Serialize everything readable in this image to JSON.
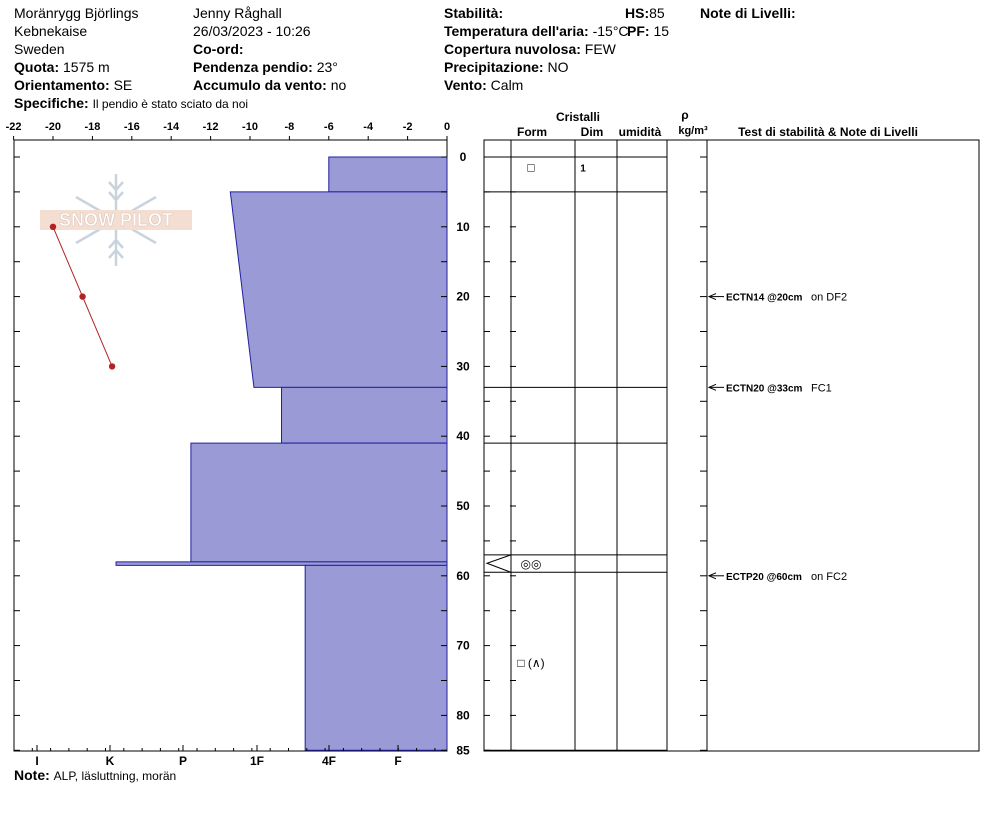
{
  "header": {
    "location": "Moränrygg Björlings",
    "region": "Kebnekaise",
    "country": "Sweden",
    "quota_label": "Quota:",
    "quota_value": "1575 m",
    "orient_label": "Orientamento:",
    "orient_value": "SE",
    "specifiche_label": "Specifiche:",
    "specifiche_value": "Il pendio è stato sciato da noi",
    "observer": "Jenny Råghall",
    "datetime": "26/03/2023 - 10:26",
    "coord_label": "Co-ord:",
    "slope_label": "Pendenza pendio:",
    "slope_value": "23°",
    "wind_load_label": "Accumulo da vento:",
    "wind_load_value": "no",
    "stability_label": "Stabilità:",
    "air_temp_label": "Temperatura dell'aria:",
    "air_temp_value": "-15°C",
    "cloud_label": "Copertura nuvolosa:",
    "cloud_value": "FEW",
    "precip_label": "Precipitazione:",
    "precip_value": "NO",
    "wind_label": "Vento:",
    "wind_value": "Calm",
    "hs_label": "HS:",
    "hs_value": "85",
    "pf_label": "PF:",
    "pf_value": "15",
    "notes_title": "Note di Livelli:"
  },
  "footer": {
    "note_label": "Note:",
    "note_value": "ALP, läsluttning, morän"
  },
  "logo_text": "SNOW PILOT",
  "colors": {
    "hardness_fill": "#9a9ad6",
    "hardness_edge": "#2020a0",
    "temp_line": "#b22222"
  },
  "chart_data": {
    "type": "snow_profile",
    "depth_axis": {
      "range": [
        0,
        85
      ],
      "ticks": [
        0,
        10,
        20,
        30,
        40,
        50,
        60,
        70,
        80,
        85
      ]
    },
    "temperature_axis": {
      "range": [
        -22,
        0
      ],
      "ticks": [
        "-22",
        "-20",
        "-18",
        "-16",
        "-14",
        "-12",
        "-10",
        "-8",
        "-6",
        "-4",
        "-2",
        "0"
      ]
    },
    "hardness_axis": {
      "ticks": [
        "I",
        "K",
        "P",
        "1F",
        "4F",
        "F"
      ]
    },
    "temperature_profile": [
      {
        "depth": 10,
        "temp": -20
      },
      {
        "depth": 20,
        "temp": -18.5
      },
      {
        "depth": 30,
        "temp": -17
      }
    ],
    "hardness_layers": [
      {
        "top": 0,
        "bottom": 5,
        "hardness_top": -6,
        "hardness_bottom": -6
      },
      {
        "top": 5,
        "bottom": 33,
        "hardness_top": -11,
        "hardness_bottom": -9.8
      },
      {
        "top": 33,
        "bottom": 41,
        "hardness_top": -8.4,
        "hardness_bottom": -8.4
      },
      {
        "top": 41,
        "bottom": 58,
        "hardness_top": -13,
        "hardness_bottom": -13
      },
      {
        "top": 58,
        "bottom": 58.5,
        "hardness_top": -16.8,
        "hardness_bottom": -16.8
      },
      {
        "top": 58.5,
        "bottom": 85,
        "hardness_top": -7.2,
        "hardness_bottom": -7.2
      }
    ],
    "layer_boundaries": [
      0,
      5,
      33,
      41,
      57,
      59.5,
      85
    ],
    "columns": {
      "cristalli": "Cristalli",
      "form": "Form",
      "dim": "Dim",
      "umidita": "umidità",
      "rho": "ρ",
      "rho_unit": "kg/m³",
      "tests": "Test di stabilità & Note di Livelli"
    },
    "crystals": [
      {
        "depth": 1.5,
        "form": "□",
        "dim": "1"
      },
      {
        "depth": 58.3,
        "form": "◎◎",
        "dim": ""
      },
      {
        "depth": 72.5,
        "form": "□ (∧)",
        "dim": ""
      }
    ],
    "tests": [
      {
        "depth": 20,
        "code": "ECTN14 @20cm",
        "note": "on DF2"
      },
      {
        "depth": 33,
        "code": "ECTN20 @33cm",
        "note": "FC1"
      },
      {
        "depth": 60,
        "code": "ECTP20 @60cm",
        "note": "on FC2"
      }
    ]
  }
}
